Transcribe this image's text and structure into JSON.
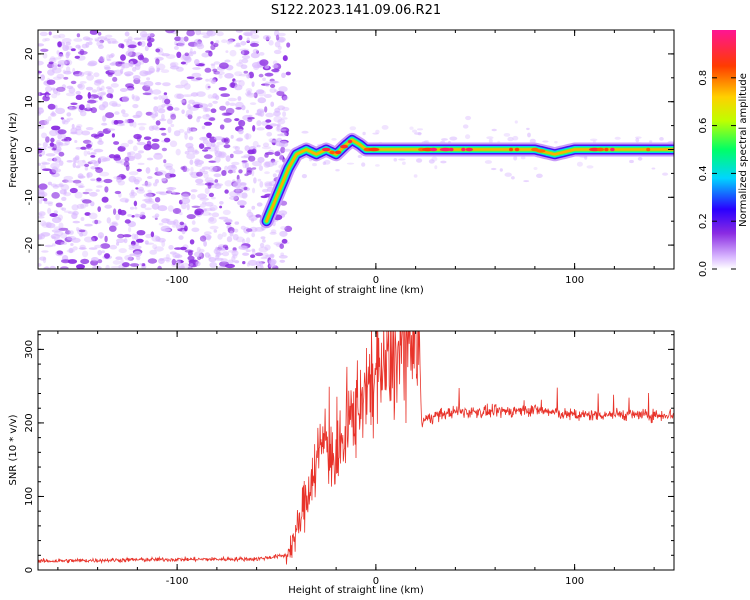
{
  "title": "S122.2023.141.09.06.R21",
  "colors": {
    "snr_line": "#e8332a",
    "spectro_noise": "#7b2cf0",
    "colormap": [
      "#ffffff",
      "#d9b8ff",
      "#8a2be2",
      "#2a00ff",
      "#00d5ff",
      "#00ff66",
      "#bfff00",
      "#ffd000",
      "#ff3b00",
      "#ff1493"
    ]
  },
  "chart_data": [
    {
      "type": "heatmap",
      "title": "",
      "xlabel": "Height of straight line (km)",
      "ylabel": "Frequency (Hz)",
      "xlim": [
        -170,
        150
      ],
      "ylim": [
        -25,
        25
      ],
      "xticks": [
        -100,
        0,
        100
      ],
      "yticks": [
        -20,
        -10,
        0,
        10,
        20
      ],
      "colorbar": {
        "label": "Normalized spectral amplitude",
        "range": [
          0,
          1
        ],
        "ticks": [
          0.0,
          0.2,
          0.4,
          0.6,
          0.8
        ]
      },
      "ridge": {
        "x": [
          -55,
          -52,
          -48,
          -44,
          -40,
          -35,
          -30,
          -25,
          -20,
          -15,
          -12,
          -8,
          -5,
          0,
          10,
          20,
          40,
          60,
          70,
          80,
          90,
          100,
          120,
          140,
          150
        ],
        "y": [
          -15,
          -12,
          -8,
          -4,
          -1,
          0,
          -1,
          0,
          -1,
          1,
          2,
          1,
          0,
          0,
          0,
          0,
          0,
          0,
          0,
          0,
          -1,
          0,
          0,
          0,
          0
        ],
        "peak_amplitude": 0.9
      },
      "noise_region_x": [
        -170,
        -50
      ]
    },
    {
      "type": "line",
      "title": "",
      "xlabel": "Height of straight line (km)",
      "ylabel": "SNR (10 * v/v)",
      "xlim": [
        -170,
        150
      ],
      "ylim": [
        0,
        325
      ],
      "xticks": [
        -100,
        0,
        100
      ],
      "yticks": [
        0,
        100,
        200,
        300
      ],
      "envelope": {
        "x": [
          -170,
          -120,
          -60,
          -45,
          -40,
          -35,
          -30,
          -25,
          -20,
          -15,
          -10,
          -5,
          0,
          5,
          10,
          15,
          20,
          22,
          23,
          25,
          30,
          40,
          60,
          80,
          100,
          120,
          140,
          150
        ],
        "y": [
          12,
          14,
          15,
          20,
          50,
          100,
          150,
          180,
          140,
          190,
          220,
          250,
          260,
          275,
          290,
          300,
          305,
          310,
          195,
          205,
          210,
          215,
          215,
          218,
          210,
          212,
          210,
          212
        ]
      }
    }
  ]
}
